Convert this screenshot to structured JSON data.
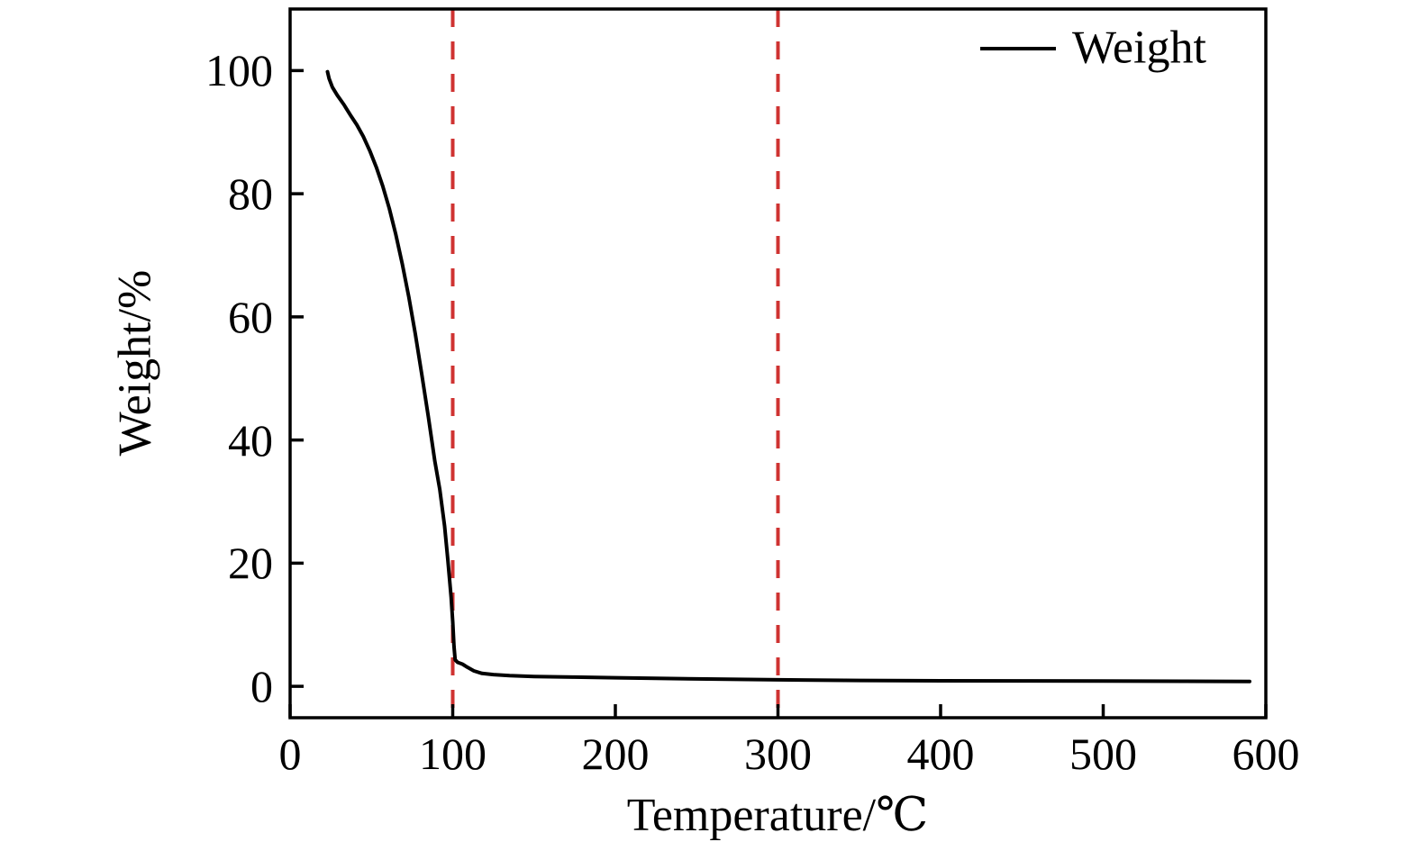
{
  "figure": {
    "background": "#ffffff",
    "text_color": "#000000"
  },
  "chart_data": {
    "type": "line",
    "title": "",
    "xlabel": "Temperature/℃",
    "ylabel": "Weight/%",
    "xlim": [
      0,
      600
    ],
    "ylim": [
      -5.1,
      110
    ],
    "x_ticks": [
      "0",
      "100",
      "200",
      "300",
      "400",
      "500",
      "600"
    ],
    "x_tick_values": [
      0,
      100,
      200,
      300,
      400,
      500,
      600
    ],
    "y_ticks": [
      "0",
      "20",
      "40",
      "60",
      "80",
      "100"
    ],
    "y_tick_values": [
      0,
      20,
      40,
      60,
      80,
      100
    ],
    "grid": false,
    "legend": {
      "position": "upper right",
      "frame": false,
      "entries": [
        {
          "label": "Weight",
          "color": "#000000",
          "style": "solid"
        }
      ]
    },
    "series": [
      {
        "name": "Weight",
        "color": "#000000",
        "line_width": 4,
        "points": [
          [
            23,
            99.8
          ],
          [
            24,
            98.7
          ],
          [
            26,
            97.3
          ],
          [
            29,
            96.0
          ],
          [
            33,
            94.5
          ],
          [
            37,
            92.8
          ],
          [
            41,
            91.2
          ],
          [
            45,
            89.3
          ],
          [
            49,
            87.0
          ],
          [
            53,
            84.3
          ],
          [
            57,
            81.2
          ],
          [
            61,
            77.6
          ],
          [
            65,
            73.4
          ],
          [
            69,
            68.6
          ],
          [
            73,
            63.2
          ],
          [
            77,
            57.2
          ],
          [
            81,
            50.6
          ],
          [
            85,
            43.8
          ],
          [
            89,
            36.6
          ],
          [
            92,
            32.0
          ],
          [
            95,
            26.0
          ],
          [
            97,
            20.5
          ],
          [
            99,
            14.5
          ],
          [
            100,
            10.5
          ],
          [
            100.8,
            6.5
          ],
          [
            101.5,
            4.3
          ],
          [
            103,
            3.9
          ],
          [
            106,
            3.6
          ],
          [
            109,
            3.1
          ],
          [
            113,
            2.5
          ],
          [
            118,
            2.1
          ],
          [
            125,
            1.9
          ],
          [
            135,
            1.75
          ],
          [
            150,
            1.6
          ],
          [
            175,
            1.5
          ],
          [
            200,
            1.4
          ],
          [
            250,
            1.2
          ],
          [
            300,
            1.05
          ],
          [
            350,
            0.95
          ],
          [
            400,
            0.9
          ],
          [
            450,
            0.88
          ],
          [
            500,
            0.85
          ],
          [
            550,
            0.82
          ],
          [
            590,
            0.8
          ]
        ]
      }
    ],
    "vlines": [
      {
        "x": 100,
        "color": "#cf3332",
        "style": "dashed"
      },
      {
        "x": 300,
        "color": "#cf3332",
        "style": "dashed"
      }
    ]
  }
}
